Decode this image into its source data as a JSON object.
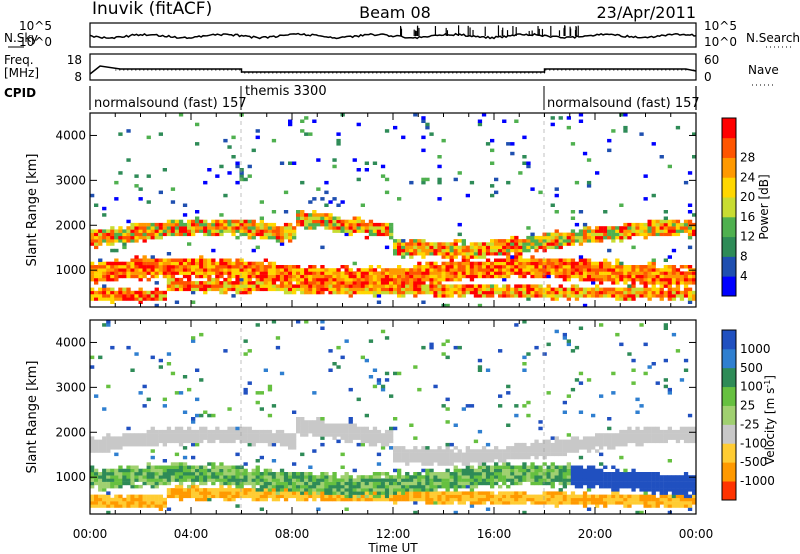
{
  "header": {
    "station": "Inuvik (fitACF)",
    "beam": "Beam 08",
    "date": "23/Apr/2011"
  },
  "top_panels": {
    "nsky_label": "N.Sky",
    "nsky_ticks": [
      "10^5",
      "10^0"
    ],
    "nsearch_label": "N.Search",
    "nsearch_ticks": [
      "10^5",
      "10^0"
    ],
    "freq_label_1": "Freq.",
    "freq_label_2": "[MHz]",
    "freq_ticks": [
      "18",
      "8"
    ],
    "nave_label": "Nave",
    "nave_ticks": [
      "60",
      "0"
    ],
    "cpid_label": "CPID",
    "cpid_segments": [
      {
        "label": "normalsound (fast) 157",
        "start": 0,
        "end": 6
      },
      {
        "label": "themis 3300",
        "start": 6,
        "end": 18
      },
      {
        "label": "normalsound (fast) 157",
        "start": 18,
        "end": 24
      }
    ]
  },
  "chart_data": [
    {
      "type": "heatmap",
      "name": "power",
      "ylabel": "Slant Range [km]",
      "xlim": [
        0,
        24
      ],
      "ylim": [
        180,
        4500
      ],
      "yticks": [
        "1000",
        "2000",
        "3000",
        "4000"
      ],
      "colorbar_label": "Power [dB]",
      "colorbar_ticks": [
        "4",
        "8",
        "12",
        "16",
        "20",
        "24",
        "28"
      ],
      "colorbar_colors": [
        "#0000ff",
        "#1f4fb0",
        "#2e8b57",
        "#4fb04f",
        "#c8dc32",
        "#ffd700",
        "#ff9900",
        "#ff5500",
        "#ff0000"
      ]
    },
    {
      "type": "heatmap",
      "name": "velocity",
      "ylabel": "Slant Range [km]",
      "xlabel": "Time UT",
      "xlim": [
        0,
        24
      ],
      "ylim": [
        180,
        4500
      ],
      "yticks": [
        "1000",
        "2000",
        "3000",
        "4000"
      ],
      "xticks": [
        "00:00",
        "04:00",
        "08:00",
        "12:00",
        "16:00",
        "20:00",
        "00:00"
      ],
      "colorbar_label": "Velocity [m s",
      "colorbar_label_sup": "-1",
      "colorbar_ticks": [
        "1000",
        "500",
        "100",
        "25",
        "-25",
        "-100",
        "-500",
        "-1000"
      ],
      "colorbar_colors": [
        "#2050c0",
        "#2f7fd0",
        "#2e8b57",
        "#66c040",
        "#a0d070",
        "#c8c8c8",
        "#ffcc33",
        "#ff9900",
        "#ff3300"
      ]
    }
  ],
  "colors": {
    "frame": "#000000",
    "missing": "#ffffff"
  }
}
